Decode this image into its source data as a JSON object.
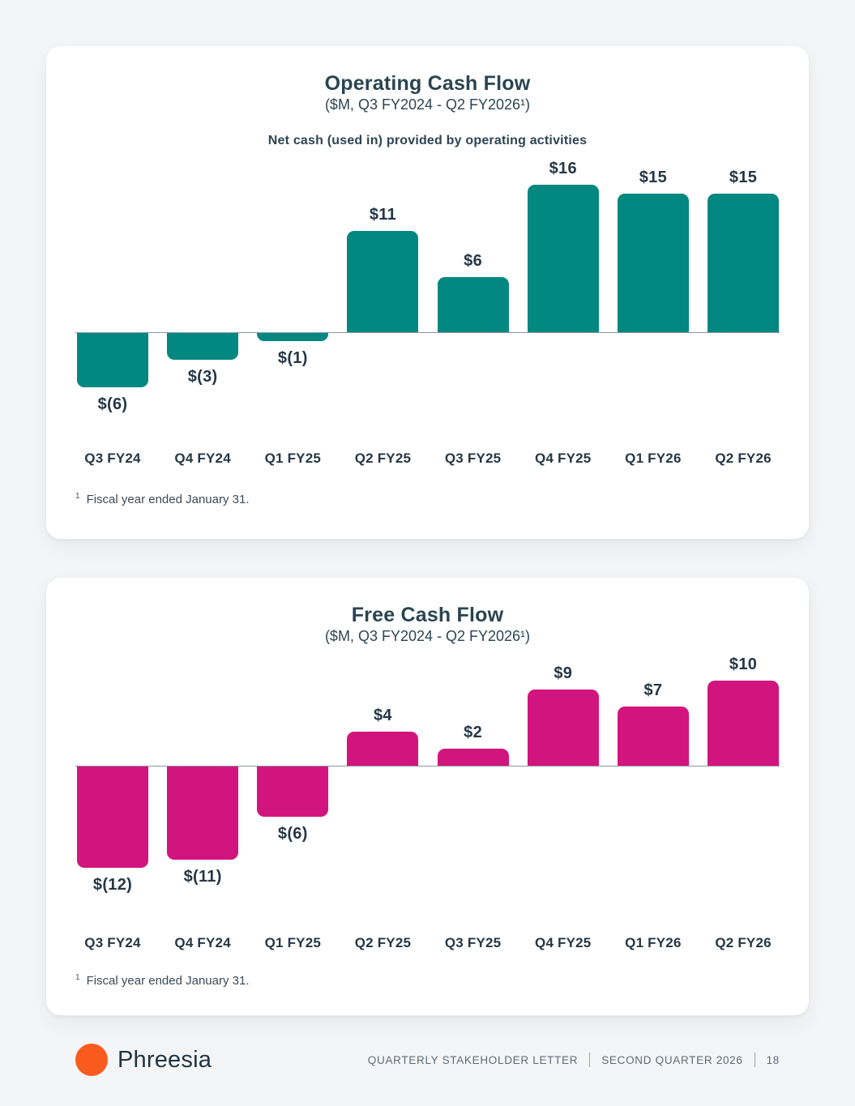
{
  "chart_data": [
    {
      "type": "bar",
      "title": "Operating Cash Flow",
      "subtitle": "($M, Q3 FY2024 - Q2 FY2026¹)",
      "series_label": "Net cash (used in) provided by operating activities",
      "categories": [
        "Q3 FY24",
        "Q4 FY24",
        "Q1 FY25",
        "Q2 FY25",
        "Q3 FY25",
        "Q4 FY25",
        "Q1 FY26",
        "Q2 FY26"
      ],
      "values": [
        -6,
        -3,
        -1,
        11,
        6,
        16,
        15,
        15
      ],
      "labels": [
        "$(6)",
        "$(3)",
        "$(1)",
        "$11",
        "$6",
        "$16",
        "$15",
        "$15"
      ],
      "bar_color": "#028880",
      "unit": "$M",
      "ylim": [
        -8,
        18
      ],
      "grid": false,
      "legend": "none",
      "footnote_superscript": "1",
      "footnote": "Fiscal year ended January 31."
    },
    {
      "type": "bar",
      "title": "Free Cash Flow",
      "subtitle": "($M, Q3 FY2024 - Q2 FY2026¹)",
      "categories": [
        "Q3 FY24",
        "Q4 FY24",
        "Q1 FY25",
        "Q2 FY25",
        "Q3 FY25",
        "Q4 FY25",
        "Q1 FY26",
        "Q2 FY26"
      ],
      "values": [
        -12,
        -11,
        -6,
        4,
        2,
        9,
        7,
        10
      ],
      "labels": [
        "$(12)",
        "$(11)",
        "$(6)",
        "$4",
        "$2",
        "$9",
        "$7",
        "$10"
      ],
      "bar_color": "#d2157e",
      "unit": "$M",
      "ylim": [
        -14,
        12
      ],
      "grid": false,
      "legend": "none",
      "footnote_superscript": "1",
      "footnote": "Fiscal year ended January 31."
    }
  ],
  "footer": {
    "brand_name": "Phreesia",
    "brand_dot_color": "#f95b1e",
    "items": [
      "QUARTERLY STAKEHOLDER LETTER",
      "SECOND QUARTER 2026",
      "18"
    ]
  },
  "colors": {
    "operating_bars": "#028880",
    "free_cash_bars": "#d2157e",
    "title_text": "#2a4450",
    "label_text": "#253746",
    "axis_line": "#8e979e",
    "footer_text": "#5f6b77",
    "background": "#f4f5f6",
    "card_background": "#ffffff"
  }
}
